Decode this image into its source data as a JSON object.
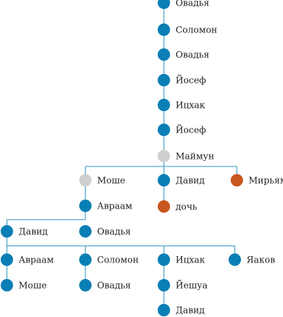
{
  "colors": {
    "line": "#4aa3c8",
    "male": "#0a7fb5",
    "female": "#c8571f",
    "unknown": "#cfcfcf"
  },
  "tree": {
    "nodes": {
      "n1": {
        "label": "Овадья",
        "kind": "male"
      },
      "n2": {
        "label": "Соломон",
        "kind": "male"
      },
      "n3": {
        "label": "Овадья",
        "kind": "male"
      },
      "n4": {
        "label": "Йосеф",
        "kind": "male"
      },
      "n5": {
        "label": "Ицхак",
        "kind": "male"
      },
      "n6": {
        "label": "Йосеф",
        "kind": "male"
      },
      "n7": {
        "label": "Маймун",
        "kind": "unknown"
      },
      "n8": {
        "label": "Моше",
        "kind": "unknown"
      },
      "n9": {
        "label": "Давид",
        "kind": "male"
      },
      "n10": {
        "label": "Мирьям",
        "kind": "female"
      },
      "n11": {
        "label": "Авраам",
        "kind": "male"
      },
      "n12": {
        "label": "дочь",
        "kind": "female"
      },
      "n13": {
        "label": "Давид",
        "kind": "male"
      },
      "n14": {
        "label": "Овадья",
        "kind": "male"
      },
      "n15": {
        "label": "Авраам",
        "kind": "male"
      },
      "n16": {
        "label": "Соломон",
        "kind": "male"
      },
      "n17": {
        "label": "Ицхак",
        "kind": "male"
      },
      "n18": {
        "label": "Яаков",
        "kind": "male"
      },
      "n19": {
        "label": "Моше",
        "kind": "male"
      },
      "n20": {
        "label": "Овадья",
        "kind": "male"
      },
      "n21": {
        "label": "Йешуа",
        "kind": "male"
      },
      "n22": {
        "label": "Давид",
        "kind": "male"
      }
    }
  }
}
